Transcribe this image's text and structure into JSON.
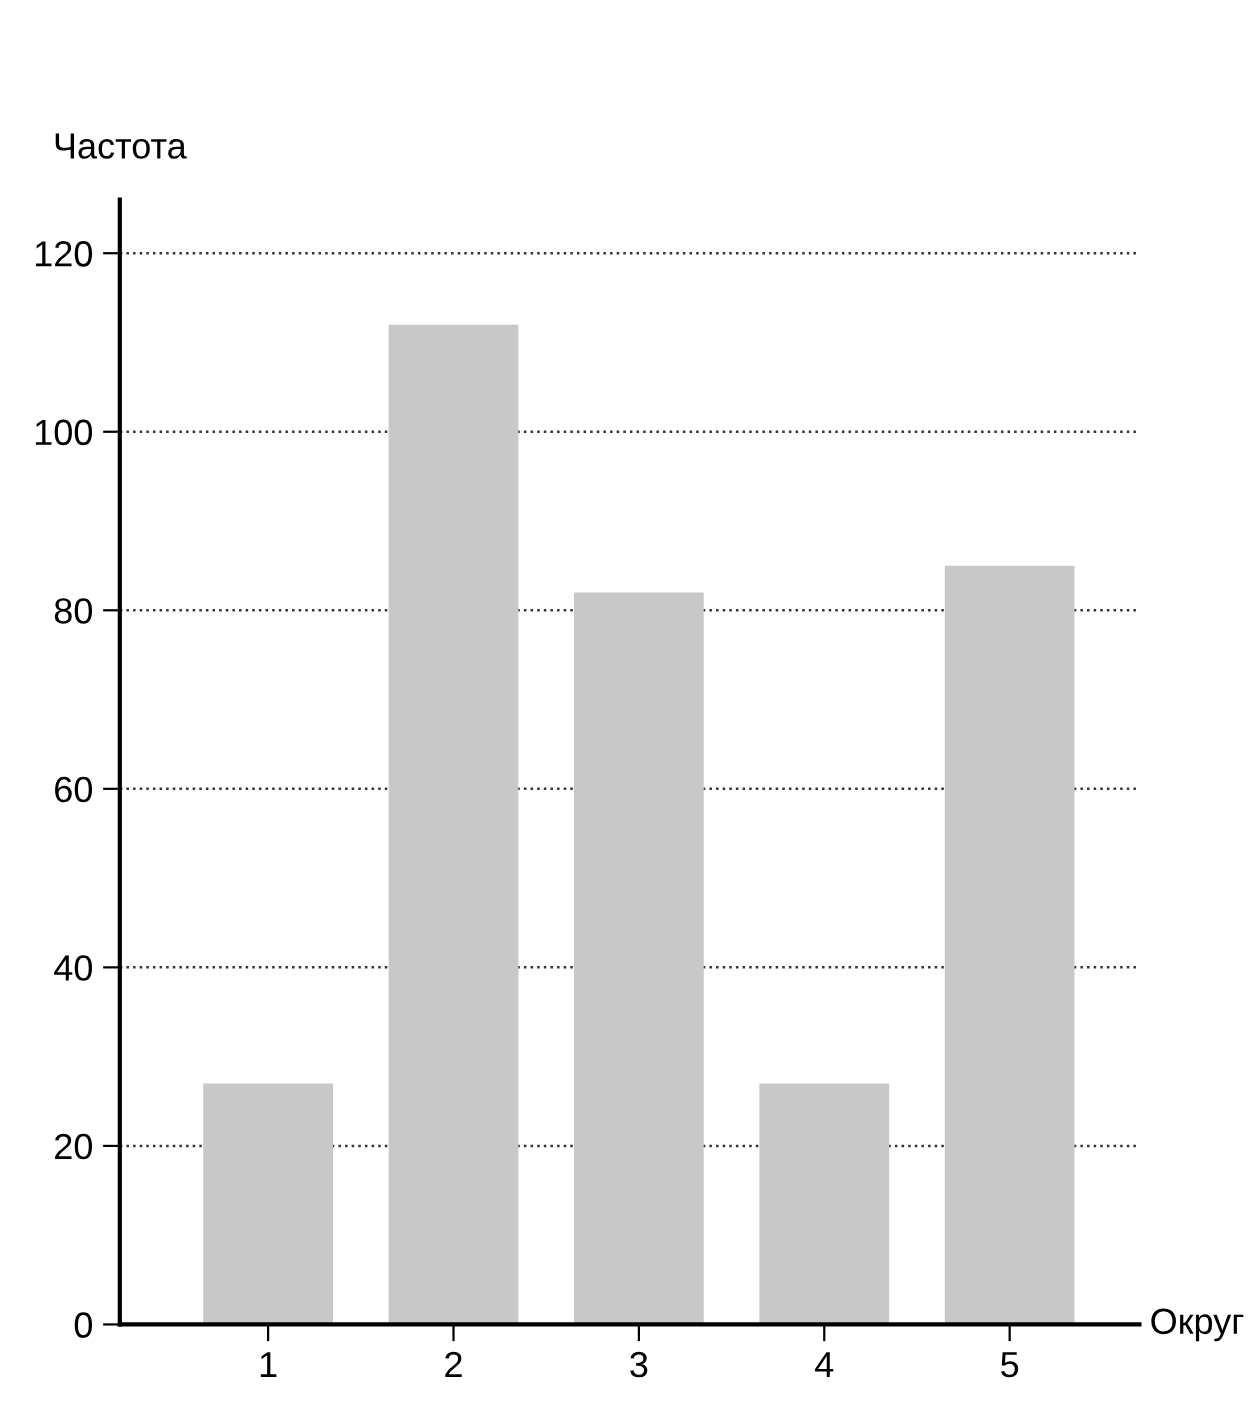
{
  "chart_data": {
    "type": "bar",
    "xlabel": "Округ",
    "ylabel": "Частота",
    "categories": [
      "1",
      "2",
      "3",
      "4",
      "5"
    ],
    "values": [
      27,
      112,
      82,
      27,
      85
    ],
    "color": "#c8c8c8",
    "ylim": [
      0,
      126
    ],
    "yticks": [
      0,
      20,
      40,
      60,
      80,
      100,
      120
    ],
    "grid": "y",
    "legend": false
  }
}
